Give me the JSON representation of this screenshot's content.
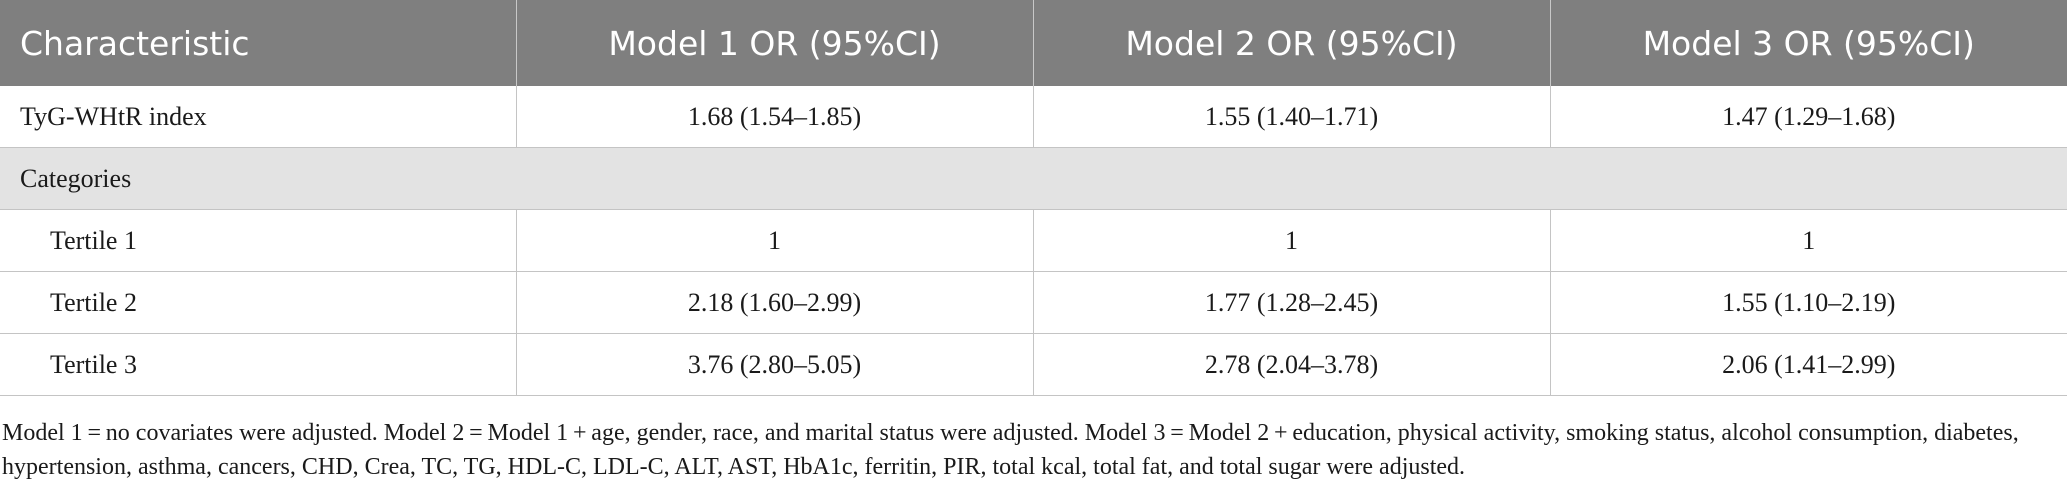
{
  "table": {
    "headers": [
      "Characteristic",
      "Model 1 OR (95%CI)",
      "Model 2 OR (95%CI)",
      "Model 3 OR (95%CI)"
    ],
    "rows": [
      {
        "label": "TyG-WHtR index",
        "values": [
          "1.68 (1.54–1.85)",
          "1.55 (1.40–1.71)",
          "1.47 (1.29–1.68)"
        ]
      },
      {
        "section": "Categories"
      },
      {
        "label": "Tertile 1",
        "values": [
          "1",
          "1",
          "1"
        ]
      },
      {
        "label": "Tertile 2",
        "values": [
          "2.18 (1.60–2.99)",
          "1.77 (1.28–2.45)",
          "1.55 (1.10–2.19)"
        ]
      },
      {
        "label": "Tertile 3",
        "values": [
          "3.76 (2.80–5.05)",
          "2.78 (2.04–3.78)",
          "2.06 (1.41–2.99)"
        ]
      }
    ]
  },
  "footnote": "Model 1 = no covariates were adjusted. Model 2 = Model 1 + age, gender, race, and marital status were adjusted. Model 3 = Model 2 + education, physical activity, smoking status, alcohol consumption, diabetes, hypertension, asthma, cancers, CHD, Crea, TC, TG, HDL-C, LDL-C, ALT, AST, HbA1c, ferritin, PIR, total kcal, total fat, and total sugar were adjusted.",
  "colors": {
    "header_bg": "#7f7f7f",
    "header_text": "#ffffff",
    "section_bg": "#e3e3e3",
    "grid": "#c4c4c4"
  }
}
